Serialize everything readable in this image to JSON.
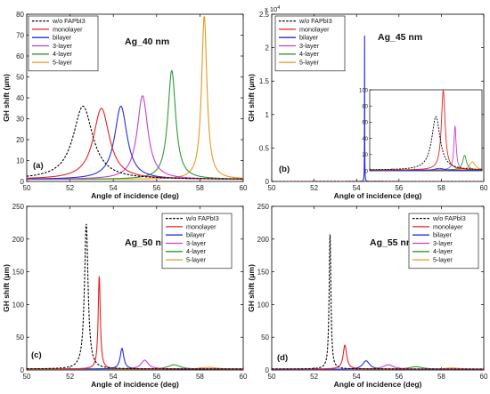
{
  "chart_data": [
    {
      "type": "line",
      "panel_label": "(a)",
      "title": "Ag_40 nm",
      "xlabel": "Angle of incidence (deg)",
      "ylabel": "GH shift (μm)",
      "xlim": [
        50,
        60
      ],
      "ylim": [
        0,
        80
      ],
      "xticks": [
        "50",
        "52",
        "54",
        "56",
        "58",
        "60"
      ],
      "yticks": [
        "0",
        "10",
        "20",
        "30",
        "40",
        "50",
        "60",
        "70",
        "80"
      ],
      "legend_position": "top-left",
      "series": [
        {
          "name": "w/o FAPbI3",
          "color": "#000000",
          "dashed": true,
          "peak_x": 52.6,
          "peak_y": 36,
          "width": 0.55,
          "base": 1.0
        },
        {
          "name": "monolayer",
          "color": "#e8211f",
          "peak_x": 53.45,
          "peak_y": 35,
          "width": 0.45,
          "base": 1.0
        },
        {
          "name": "bilayer",
          "color": "#1f2fe0",
          "peak_x": 54.35,
          "peak_y": 36,
          "width": 0.35,
          "base": 1.0
        },
        {
          "name": "3-layer",
          "color": "#c640c9",
          "peak_x": 55.35,
          "peak_y": 41,
          "width": 0.3,
          "base": 1.0
        },
        {
          "name": "4-layer",
          "color": "#2e9a33",
          "peak_x": 56.7,
          "peak_y": 53,
          "width": 0.22,
          "base": 1.0
        },
        {
          "name": "5-layer",
          "color": "#e39a1f",
          "peak_x": 58.2,
          "peak_y": 79,
          "width": 0.15,
          "base": 1.0
        }
      ]
    },
    {
      "type": "line",
      "panel_label": "(b)",
      "title": "Ag_45 nm",
      "xlabel": "Angle of incidence (deg)",
      "ylabel": "GH shift (μm)",
      "xlim": [
        50,
        60
      ],
      "ylim": [
        0,
        2.5
      ],
      "y_multiplier": "x 10",
      "y_multiplier_exp": "4",
      "xticks": [
        "50",
        "52",
        "54",
        "56",
        "58",
        "60"
      ],
      "yticks": [
        "0",
        "0.5",
        "1",
        "1.5",
        "2",
        "2.5"
      ],
      "legend_position": "top-left",
      "series": [
        {
          "name": "w/o FAPbI3",
          "color": "#000000",
          "dashed": true,
          "peak_x": 52.5,
          "peak_y": 0.0007,
          "width": 0.3,
          "base": 0.0001
        },
        {
          "name": "monolayer",
          "color": "#e8211f",
          "peak_x": 53.4,
          "peak_y": 0.0001,
          "width": 0.5,
          "base": 0.0001
        },
        {
          "name": "bilayer",
          "color": "#1f2fe0",
          "peak_x": 54.38,
          "peak_y": 2.18,
          "width": 0.006,
          "base": 0.0001
        },
        {
          "name": "3-layer",
          "color": "#c640c9",
          "peak_x": 55.4,
          "peak_y": 0.0006,
          "width": 0.3,
          "base": 0.0001
        },
        {
          "name": "4-layer",
          "color": "#2e9a33",
          "peak_x": 56.7,
          "peak_y": 0.0002,
          "width": 0.3,
          "base": 0.0001
        },
        {
          "name": "5-layer",
          "color": "#e39a1f",
          "peak_x": 58.2,
          "peak_y": 0.0001,
          "width": 0.3,
          "base": 0.0001
        }
      ],
      "inset": {
        "xlim": [
          50,
          60
        ],
        "ylim": [
          0,
          100
        ],
        "yticks": [
          "0",
          "20",
          "40",
          "60",
          "80",
          "100"
        ],
        "series": [
          {
            "name": "w/o FAPbI3",
            "color": "#000000",
            "dashed": true,
            "peak_x": 55.9,
            "peak_y": 67,
            "width": 0.45,
            "base": 1.0
          },
          {
            "name": "monolayer",
            "color": "#e8211f",
            "peak_x": 56.55,
            "peak_y": 99,
            "width": 0.2,
            "base": 1.0
          },
          {
            "name": "bilayer",
            "color": "#1f2fe0",
            "peak_x": 56.2,
            "peak_y": 3,
            "width": 0.5,
            "base": 0.5
          },
          {
            "name": "3-layer",
            "color": "#c640c9",
            "peak_x": 57.6,
            "peak_y": 55,
            "width": 0.12,
            "base": 1.0
          },
          {
            "name": "4-layer",
            "color": "#2e9a33",
            "peak_x": 58.45,
            "peak_y": 19,
            "width": 0.2,
            "base": 1.0
          },
          {
            "name": "5-layer",
            "color": "#e39a1f",
            "peak_x": 59.15,
            "peak_y": 11,
            "width": 0.3,
            "base": 1.0
          }
        ]
      }
    },
    {
      "type": "line",
      "panel_label": "(c)",
      "title": "Ag_50 nm",
      "xlabel": "Angle of incidence (deg)",
      "ylabel": "GH shift (μm)",
      "xlim": [
        50,
        60
      ],
      "ylim": [
        0,
        250
      ],
      "xticks": [
        "50",
        "52",
        "54",
        "56",
        "58",
        "60"
      ],
      "yticks": [
        "0",
        "50",
        "100",
        "150",
        "200",
        "250"
      ],
      "legend_position": "top-right",
      "series": [
        {
          "name": "w/o FAPbI3",
          "color": "#000000",
          "dashed": true,
          "peak_x": 52.75,
          "peak_y": 223,
          "width": 0.1,
          "base": 1.5
        },
        {
          "name": "monolayer",
          "color": "#e8211f",
          "peak_x": 53.35,
          "peak_y": 143,
          "width": 0.06,
          "base": 1.5
        },
        {
          "name": "bilayer",
          "color": "#1f2fe0",
          "peak_x": 54.4,
          "peak_y": 33,
          "width": 0.1,
          "base": 1.5
        },
        {
          "name": "3-layer",
          "color": "#c640c9",
          "peak_x": 55.45,
          "peak_y": 15,
          "width": 0.2,
          "base": 1.5
        },
        {
          "name": "4-layer",
          "color": "#2e9a33",
          "peak_x": 56.8,
          "peak_y": 8,
          "width": 0.35,
          "base": 1.0
        },
        {
          "name": "5-layer",
          "color": "#e39a1f",
          "peak_x": 58.4,
          "peak_y": 4,
          "width": 0.5,
          "base": 1.0
        }
      ]
    },
    {
      "type": "line",
      "panel_label": "(d)",
      "title": "Ag_55 nm",
      "xlabel": "Angle of incidence (deg)",
      "ylabel": "GH shift (μm)",
      "xlim": [
        50,
        60
      ],
      "ylim": [
        0,
        250
      ],
      "xticks": [
        "50",
        "52",
        "54",
        "56",
        "58",
        "60"
      ],
      "yticks": [
        "0",
        "50",
        "100",
        "150",
        "200",
        "250"
      ],
      "legend_position": "top-right",
      "series": [
        {
          "name": "w/o FAPbI3",
          "color": "#000000",
          "dashed": true,
          "peak_x": 52.75,
          "peak_y": 207,
          "width": 0.05,
          "base": 1.5
        },
        {
          "name": "monolayer",
          "color": "#e8211f",
          "peak_x": 53.45,
          "peak_y": 38,
          "width": 0.1,
          "base": 1.5
        },
        {
          "name": "bilayer",
          "color": "#1f2fe0",
          "peak_x": 54.45,
          "peak_y": 14,
          "width": 0.2,
          "base": 1.0
        },
        {
          "name": "3-layer",
          "color": "#c640c9",
          "peak_x": 55.5,
          "peak_y": 8,
          "width": 0.3,
          "base": 1.0
        },
        {
          "name": "4-layer",
          "color": "#2e9a33",
          "peak_x": 56.8,
          "peak_y": 5,
          "width": 0.4,
          "base": 1.0
        },
        {
          "name": "5-layer",
          "color": "#e39a1f",
          "peak_x": 58.5,
          "peak_y": 3,
          "width": 0.5,
          "base": 1.0
        }
      ]
    }
  ]
}
